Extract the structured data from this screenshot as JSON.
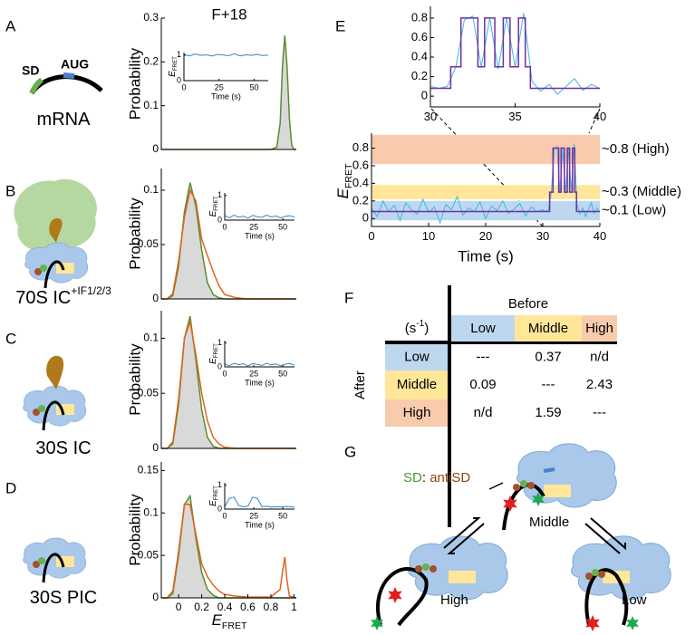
{
  "chart_data": [
    {
      "type": "distribution",
      "title": "F+18",
      "ylabel": "Probability",
      "xlim": [
        -0.15,
        1.02
      ],
      "ylim": [
        0,
        0.3
      ],
      "yticks": [
        0,
        0.1,
        0.2,
        0.3
      ],
      "x": [
        -0.15,
        0,
        0.2,
        0.4,
        0.6,
        0.8,
        0.85,
        0.88,
        0.9,
        0.92,
        0.94,
        0.96,
        0.98,
        1.0,
        1.02
      ],
      "series": [
        {
          "color": "#5b8c32",
          "fill": "#d9d9d9",
          "values": [
            0,
            0,
            0,
            0,
            0,
            0,
            0.005,
            0.06,
            0.19,
            0.26,
            0.19,
            0.07,
            0.01,
            0,
            0
          ]
        }
      ],
      "inset": {
        "color": "#2f86cc",
        "xlim": [
          0,
          60
        ],
        "ylim": [
          0,
          1.1
        ],
        "xticks": [
          0,
          25,
          50
        ],
        "yticks": [
          0,
          1
        ],
        "xlabel": "Time (s)",
        "ylabel": {
          "main": "E",
          "sub": "FRET"
        },
        "x": [
          0,
          4,
          8,
          12,
          16,
          20,
          24,
          28,
          32,
          36,
          40,
          44,
          48,
          52,
          56,
          60
        ],
        "values": [
          1.02,
          0.97,
          1.04,
          0.99,
          1.01,
          0.96,
          1.03,
          1,
          0.98,
          1.05,
          0.97,
          1.01,
          0.99,
          1.03,
          0.98,
          1
        ]
      }
    },
    {
      "type": "distribution",
      "ylabel": "Probability",
      "xlim": [
        -0.15,
        1.02
      ],
      "ylim": [
        0,
        0.12
      ],
      "yticks": [
        0,
        0.05,
        0.1
      ],
      "x": [
        -0.15,
        -0.1,
        -0.05,
        0,
        0.05,
        0.1,
        0.15,
        0.2,
        0.25,
        0.3,
        0.35,
        0.4,
        0.5,
        0.6,
        0.8,
        1.02
      ],
      "series": [
        {
          "color": "#5b8c32",
          "fill": "#d9d9d9",
          "values": [
            0,
            0,
            0.003,
            0.03,
            0.08,
            0.107,
            0.085,
            0.045,
            0.015,
            0.004,
            0.001,
            0,
            0,
            0,
            0,
            0
          ]
        },
        {
          "color": "#e0641e",
          "values": [
            0,
            0,
            0.005,
            0.035,
            0.075,
            0.1,
            0.09,
            0.055,
            0.04,
            0.025,
            0.012,
            0.004,
            0.001,
            0,
            0,
            0
          ]
        }
      ],
      "inset": {
        "color": "#2f86cc",
        "xlim": [
          0,
          60
        ],
        "ylim": [
          0,
          1.1
        ],
        "xticks": [
          0,
          25,
          50
        ],
        "yticks": [
          0,
          1
        ],
        "xlabel": "Time (s)",
        "ylabel": {
          "main": "E",
          "sub": "FRET"
        },
        "x": [
          0,
          4,
          8,
          12,
          16,
          20,
          24,
          28,
          32,
          36,
          40,
          44,
          48,
          52,
          56,
          60
        ],
        "values": [
          0.18,
          0.1,
          0.2,
          0.12,
          0.16,
          0.08,
          0.19,
          0.14,
          0.11,
          0.2,
          0.13,
          0.17,
          0.09,
          0.15,
          0.18,
          0.12
        ]
      }
    },
    {
      "type": "distribution",
      "ylabel": "Probability",
      "xlim": [
        -0.15,
        1.02
      ],
      "ylim": [
        0,
        0.125
      ],
      "yticks": [
        0,
        0.05,
        0.1
      ],
      "x": [
        -0.15,
        -0.1,
        -0.05,
        0,
        0.05,
        0.1,
        0.15,
        0.2,
        0.25,
        0.3,
        0.35,
        0.4,
        0.5,
        0.6,
        0.8,
        1.02
      ],
      "series": [
        {
          "color": "#5b8c32",
          "fill": "#d9d9d9",
          "values": [
            0,
            0,
            0.004,
            0.04,
            0.1,
            0.12,
            0.08,
            0.035,
            0.01,
            0.002,
            0,
            0,
            0,
            0,
            0,
            0
          ]
        },
        {
          "color": "#e0641e",
          "values": [
            0,
            0,
            0.006,
            0.045,
            0.1,
            0.115,
            0.085,
            0.05,
            0.025,
            0.01,
            0.004,
            0.001,
            0,
            0,
            0,
            0
          ]
        }
      ],
      "inset": {
        "color": "#2f86cc",
        "xlim": [
          0,
          60
        ],
        "ylim": [
          0,
          1.1
        ],
        "xticks": [
          0,
          25,
          50
        ],
        "yticks": [
          0,
          1
        ],
        "xlabel": "Time (s)",
        "ylabel": {
          "main": "E",
          "sub": "FRET"
        },
        "x": [
          0,
          4,
          8,
          12,
          16,
          20,
          24,
          28,
          32,
          36,
          40,
          44,
          48,
          52,
          56,
          60
        ],
        "values": [
          0.12,
          0.05,
          0.15,
          0.09,
          0.13,
          0.04,
          0.14,
          0.1,
          0.06,
          0.15,
          0.08,
          0.12,
          0.05,
          0.11,
          0.14,
          0.07
        ]
      }
    },
    {
      "type": "distribution",
      "ylabel": "Probability",
      "xlabel": {
        "main": "E",
        "sub": "FRET"
      },
      "xlim": [
        -0.15,
        1.02
      ],
      "ylim": [
        0,
        0.16
      ],
      "yticks": [
        0,
        0.05,
        0.1,
        0.15
      ],
      "xticks": [
        0,
        0.2,
        0.4,
        0.6,
        0.8,
        1
      ],
      "x": [
        -0.15,
        -0.1,
        -0.05,
        0,
        0.05,
        0.1,
        0.15,
        0.2,
        0.25,
        0.3,
        0.35,
        0.4,
        0.5,
        0.6,
        0.8,
        0.88,
        0.9,
        0.92,
        0.94,
        0.96,
        1.02
      ],
      "series": [
        {
          "color": "#5b8c32",
          "fill": "#d9d9d9",
          "values": [
            0,
            0,
            0.005,
            0.05,
            0.11,
            0.12,
            0.07,
            0.03,
            0.01,
            0.003,
            0,
            0,
            0,
            0,
            0,
            0,
            0,
            0,
            0,
            0,
            0
          ]
        },
        {
          "color": "#e0641e",
          "values": [
            0,
            0,
            0.008,
            0.055,
            0.11,
            0.11,
            0.075,
            0.04,
            0.025,
            0.015,
            0.008,
            0.004,
            0.002,
            0.001,
            0.001,
            0.01,
            0.03,
            0.048,
            0.02,
            0.002,
            0
          ]
        }
      ],
      "inset": {
        "color": "#2f86cc",
        "xlim": [
          0,
          60
        ],
        "ylim": [
          0,
          1.1
        ],
        "xticks": [
          0,
          25,
          50
        ],
        "yticks": [
          0,
          1
        ],
        "xlabel": "Time (s)",
        "ylabel": {
          "main": "E",
          "sub": "FRET"
        },
        "x": [
          0,
          4,
          8,
          12,
          16,
          20,
          24,
          28,
          32,
          36,
          40,
          44,
          48,
          52,
          56,
          60
        ],
        "values": [
          0.1,
          0.45,
          0.5,
          0.15,
          0.1,
          0.12,
          0.5,
          0.45,
          0.1,
          0.12,
          0.08,
          0.1,
          0.09,
          0.11,
          0.1,
          0.08
        ]
      }
    },
    {
      "type": "trace",
      "panel": "E",
      "xlabel": "Time (s)",
      "ylabel": {
        "main": "E",
        "sub": "FRET"
      },
      "xlim": [
        0,
        40
      ],
      "ylim": [
        -0.09,
        0.97
      ],
      "xticks": [
        0,
        10,
        20,
        30,
        40
      ],
      "yticks": [
        0,
        0.2,
        0.4,
        0.6,
        0.8
      ],
      "bands": [
        {
          "label": "~0.8 (High)",
          "range": [
            0.62,
            0.95
          ],
          "color": "#f8cbad"
        },
        {
          "label": "~0.3 (Middle)",
          "range": [
            0.22,
            0.38
          ],
          "color": "#ffe699"
        },
        {
          "label": "~0.1 (Low)",
          "range": [
            -0.02,
            0.2
          ],
          "color": "#bdd7ee"
        }
      ],
      "series": [
        {
          "color": "#3fb6e8",
          "x": [
            0,
            1,
            2,
            3,
            4,
            5,
            6,
            7,
            8,
            9,
            10,
            11,
            12,
            13,
            14,
            15,
            16,
            17,
            18,
            19,
            20,
            21,
            22,
            23,
            24,
            25,
            26,
            27,
            28,
            29,
            30,
            30.5,
            31,
            31.5,
            32,
            32.5,
            33,
            33.5,
            34,
            34.5,
            35,
            35.5,
            36,
            36.5,
            37,
            37.5,
            38,
            38.5,
            39,
            39.5,
            40
          ],
          "values": [
            0.12,
            0.02,
            0.2,
            0.08,
            0.15,
            -0.02,
            0.18,
            0.1,
            0.05,
            0.22,
            0.07,
            0.13,
            -0.05,
            0.16,
            0.1,
            0.25,
            0.04,
            0.12,
            0.08,
            0.19,
            0.0,
            0.14,
            0.09,
            0.2,
            0.06,
            0.11,
            0.17,
            0.03,
            0.13,
            0.08,
            0.1,
            0.08,
            0.1,
            0.3,
            0.78,
            0.82,
            0.3,
            0.8,
            0.28,
            0.8,
            0.3,
            0.85,
            0.15,
            0.05,
            0.12,
            0.02,
            0.1,
            0.18,
            0.06,
            0.12,
            0.08
          ]
        },
        {
          "color": "#7030a0",
          "x": [
            0,
            31.2,
            31.2,
            31.8,
            31.8,
            32.8,
            32.8,
            33.2,
            33.2,
            33.8,
            33.8,
            34.3,
            34.3,
            34.7,
            34.7,
            35.2,
            35.2,
            35.6,
            35.6,
            35.9,
            35.9,
            40
          ],
          "values": [
            0.08,
            0.08,
            0.3,
            0.3,
            0.8,
            0.8,
            0.3,
            0.3,
            0.8,
            0.8,
            0.3,
            0.3,
            0.8,
            0.8,
            0.3,
            0.3,
            0.8,
            0.8,
            0.3,
            0.3,
            0.08,
            0.08
          ]
        }
      ],
      "zoom": {
        "xlim": [
          30,
          40
        ],
        "ylim": [
          -0.11,
          0.92
        ],
        "xticks": [
          30,
          35,
          40
        ],
        "yticks": [
          0,
          0.2,
          0.4,
          0.6,
          0.8
        ]
      }
    }
  ],
  "conditions": [
    {
      "letter": "A",
      "sd": "SD",
      "aug": "AUG",
      "label": "mRNA"
    },
    {
      "letter": "B",
      "label": "70S IC",
      "label_sup": "+IF1/2/3"
    },
    {
      "letter": "C",
      "label": "30S IC"
    },
    {
      "letter": "D",
      "label": "30S PIC"
    }
  ],
  "table": {
    "letter": "F",
    "unit": "(s",
    "unit_sup": "-1",
    "unit_end": ")",
    "column_group": "Before",
    "row_group": "After",
    "columns": [
      {
        "label": "Low",
        "color": "#bdd7ee"
      },
      {
        "label": "Middle",
        "color": "#ffe699"
      },
      {
        "label": "High",
        "color": "#f8cbad"
      }
    ],
    "rows": [
      {
        "label": "Low",
        "color": "#bdd7ee",
        "cells": [
          "---",
          0.37,
          "n/d"
        ]
      },
      {
        "label": "Middle",
        "color": "#ffe699",
        "cells": [
          0.09,
          "---",
          2.43
        ]
      },
      {
        "label": "High",
        "color": "#f8cbad",
        "cells": [
          "n/d",
          1.59,
          "---"
        ]
      }
    ]
  },
  "diagram": {
    "letter": "G",
    "sd": "SD",
    "sep": ": ",
    "antisd": "antiSD",
    "states": [
      "Middle",
      "High",
      "Low"
    ]
  }
}
